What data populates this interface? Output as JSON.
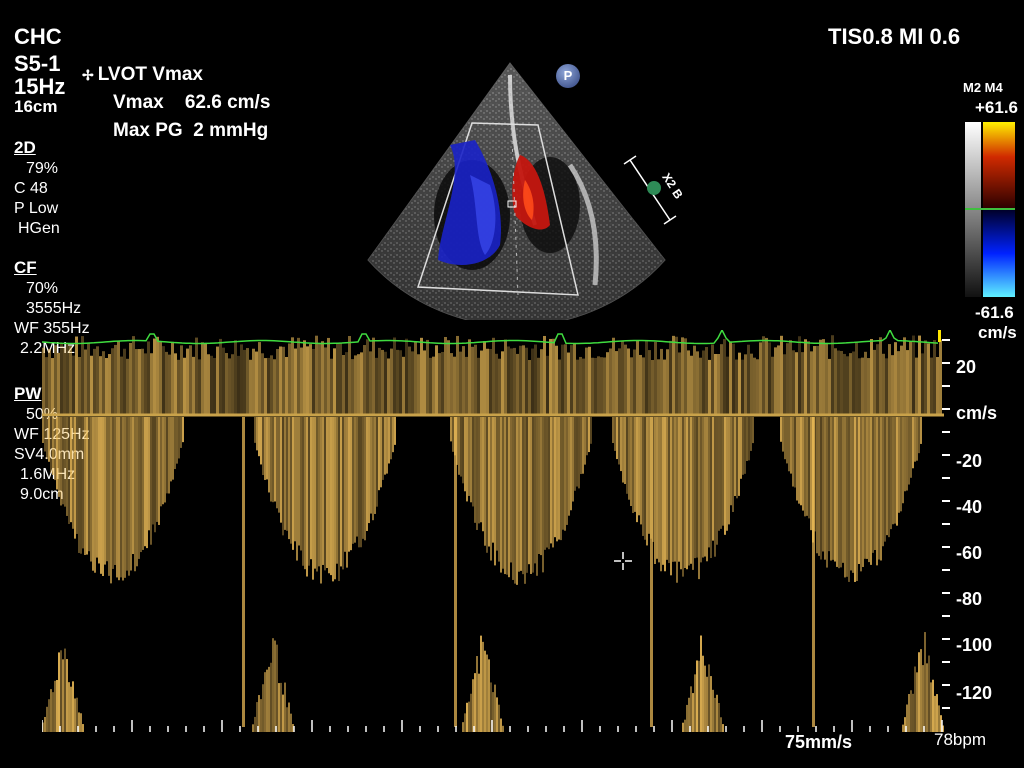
{
  "header": {
    "system": "CHC",
    "probe": "S5-1",
    "frame_rate": "15Hz",
    "depth": "16cm",
    "tis_mi": "TIS0.8   MI 0.6"
  },
  "measurement": {
    "title": "LVOT Vmax",
    "vmax": "Vmax    62.6 cm/s",
    "pg": "Max PG  2 mmHg"
  },
  "settings_2d": {
    "heading": "2D",
    "lines": [
      "79%",
      "C 48",
      "P Low",
      "HGen"
    ]
  },
  "settings_cf": {
    "heading": "CF",
    "lines": [
      "70%",
      "3555Hz",
      "WF 355Hz",
      "2.2MHz"
    ]
  },
  "settings_pw": {
    "heading": "PW",
    "lines": [
      "50%",
      "WF 125Hz",
      "SV4.0mm",
      "1.6MHz",
      "9.0cm"
    ]
  },
  "color_scale": {
    "mode": "M2 M4",
    "top": "+61.6",
    "bottom": "-61.6",
    "unit": "cm/s"
  },
  "doppler_axis": {
    "unit": "cm/s",
    "ticks": [
      "20",
      "-20",
      "-40",
      "-60",
      "-80",
      "-100",
      "-120"
    ]
  },
  "footer": {
    "sweep": "75mm/s",
    "heart_rate": "78bpm"
  },
  "badge": {
    "label": "P"
  },
  "probe_marker": {
    "x2": "X2",
    "b": "B"
  },
  "colors": {
    "spectrum": "#f3c15a",
    "baseline": "#c9a24a",
    "ecg": "#3fdc3f",
    "flow_red": "#c4160f",
    "flow_blue": "#1a22c8"
  }
}
